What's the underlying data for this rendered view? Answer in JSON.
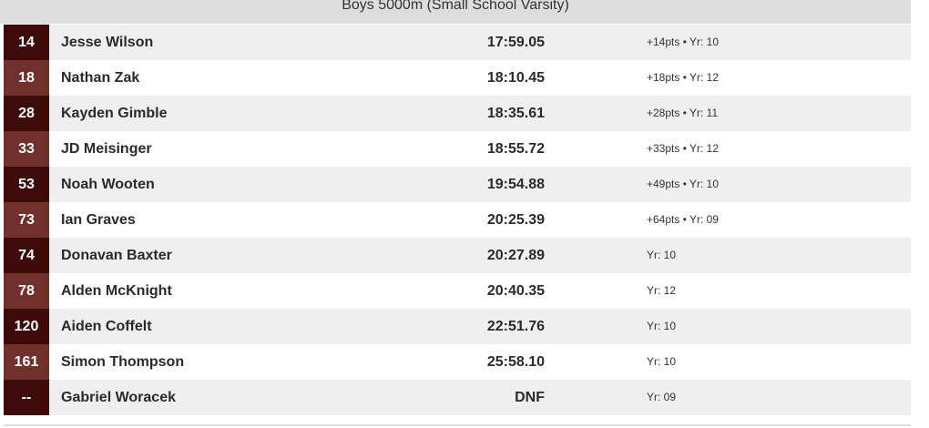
{
  "header": {
    "title": "Boys 5000m (Small School Varsity)"
  },
  "table": {
    "rows": [
      {
        "place": "14",
        "name": "Jesse Wilson",
        "time": "17:59.05",
        "info": "+14pts • Yr: 10"
      },
      {
        "place": "18",
        "name": "Nathan Zak",
        "time": "18:10.45",
        "info": "+18pts • Yr: 12"
      },
      {
        "place": "28",
        "name": "Kayden Gimble",
        "time": "18:35.61",
        "info": "+28pts • Yr: 11"
      },
      {
        "place": "33",
        "name": "JD Meisinger",
        "time": "18:55.72",
        "info": "+33pts • Yr: 12"
      },
      {
        "place": "53",
        "name": "Noah Wooten",
        "time": "19:54.88",
        "info": "+49pts • Yr: 10"
      },
      {
        "place": "73",
        "name": "Ian Graves",
        "time": "20:25.39",
        "info": "+64pts • Yr: 09"
      },
      {
        "place": "74",
        "name": "Donavan Baxter",
        "time": "20:27.89",
        "info": "Yr: 10"
      },
      {
        "place": "78",
        "name": "Alden McKnight",
        "time": "20:40.35",
        "info": "Yr: 12"
      },
      {
        "place": "120",
        "name": "Aiden Coffelt",
        "time": "22:51.76",
        "info": "Yr: 10"
      },
      {
        "place": "161",
        "name": "Simon Thompson",
        "time": "25:58.10",
        "info": "Yr: 10"
      },
      {
        "place": "--",
        "name": "Gabriel Woracek",
        "time": "DNF",
        "info": "Yr: 09"
      }
    ]
  }
}
